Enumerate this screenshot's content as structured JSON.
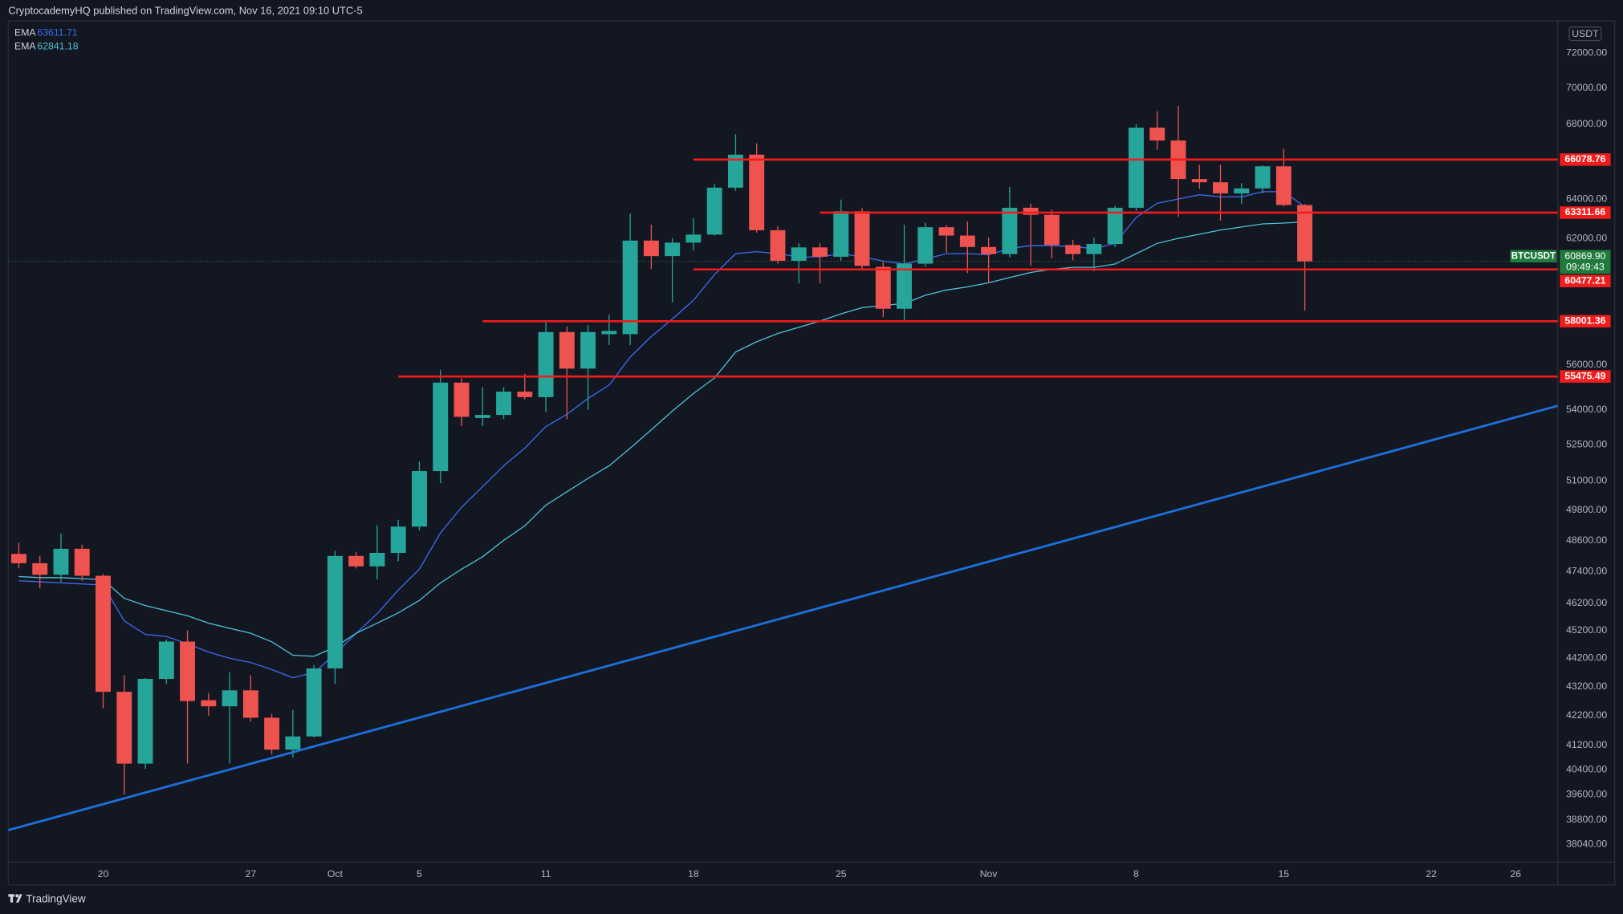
{
  "header": "CryptocademyHQ published on TradingView.com, Nov 16, 2021 09:10 UTC-5",
  "footer": "TradingView",
  "chart_data": {
    "type": "candlestick",
    "symbol": "BTCUSDT",
    "currency": "USDT",
    "countdown": "09:49:43",
    "last_price_label": "60869.90",
    "log_scale": true,
    "grid": false,
    "up_color": "#26a69a",
    "down_color": "#ef5350",
    "open": [
      48080,
      47720,
      47280,
      48280,
      47240,
      43020,
      40600,
      43470,
      44800,
      42730,
      42520,
      43070,
      42130,
      41060,
      41500,
      43840,
      48000,
      47600,
      48120,
      49150,
      51400,
      55200,
      53650,
      53780,
      54800,
      54560,
      57500,
      55830,
      57400,
      57400,
      61900,
      61130,
      61800,
      62200,
      64600,
      66340,
      62420,
      60900,
      61560,
      61100,
      63380,
      60600,
      58590,
      60760,
      62570,
      62150,
      61580,
      61230,
      63560,
      63200,
      61680,
      61230,
      61730,
      63560,
      67800,
      67100,
      65050,
      64880,
      64300,
      64560,
      65720,
      63700
    ],
    "high": [
      48520,
      48000,
      48880,
      48440,
      47300,
      43600,
      43500,
      44880,
      45200,
      42980,
      43700,
      43600,
      42260,
      42400,
      43960,
      48200,
      48160,
      49200,
      49420,
      51800,
      55780,
      55400,
      55000,
      55000,
      55600,
      58000,
      57760,
      57820,
      58300,
      63260,
      62700,
      62030,
      63030,
      64800,
      67440,
      66950,
      62620,
      61770,
      61770,
      63980,
      63560,
      60870,
      62700,
      62800,
      62680,
      62860,
      62050,
      64640,
      63770,
      63460,
      61940,
      62050,
      63670,
      68000,
      68700,
      69000,
      65800,
      65800,
      64840,
      65770,
      66650,
      63750
    ],
    "low": [
      47520,
      46770,
      47000,
      47040,
      42450,
      39600,
      40430,
      43300,
      40600,
      42200,
      40600,
      42000,
      40900,
      40800,
      41470,
      43300,
      47520,
      47100,
      47800,
      49000,
      50900,
      53300,
      53300,
      53600,
      54460,
      53900,
      53600,
      54000,
      56900,
      56900,
      60500,
      58900,
      61400,
      62150,
      64440,
      62300,
      60760,
      59800,
      59800,
      60900,
      60500,
      58200,
      58050,
      60600,
      61300,
      60300,
      59800,
      61070,
      60650,
      61020,
      60920,
      60400,
      61580,
      63400,
      66600,
      63100,
      64540,
      62900,
      63760,
      64300,
      63630,
      58500
    ],
    "close": [
      47720,
      47280,
      48280,
      47240,
      43020,
      40600,
      43470,
      44800,
      42700,
      42520,
      43070,
      42130,
      41060,
      41500,
      43840,
      48000,
      47600,
      48120,
      49150,
      51400,
      55200,
      53700,
      53780,
      54800,
      54560,
      57500,
      55830,
      57500,
      57550,
      61900,
      61130,
      61800,
      62200,
      64600,
      66340,
      62420,
      60900,
      61560,
      61100,
      63380,
      60650,
      58590,
      60760,
      62570,
      62150,
      61580,
      61230,
      63560,
      63200,
      61680,
      61230,
      61730,
      63560,
      67800,
      67100,
      65050,
      64880,
      64300,
      64560,
      65720,
      63700,
      60869.9
    ],
    "series": [
      {
        "name": "EMA",
        "color": "#3d6df2",
        "values": [
          47050,
          47010,
          46970,
          46930,
          46890,
          45550,
          45060,
          44980,
          44720,
          44420,
          44200,
          44050,
          43800,
          43510,
          43690,
          44350,
          45100,
          45820,
          46700,
          47490,
          48900,
          49920,
          50760,
          51620,
          52360,
          53280,
          53810,
          54500,
          55090,
          56350,
          57290,
          58110,
          58990,
          60230,
          61250,
          61350,
          61250,
          61090,
          61090,
          61250,
          61090,
          60890,
          60740,
          60990,
          61250,
          61250,
          61200,
          61500,
          61650,
          61650,
          61600,
          61500,
          61760,
          63060,
          63790,
          64010,
          64230,
          64120,
          64120,
          64390,
          64390,
          63611.71
        ]
      },
      {
        "name": "EMA",
        "color": "#4fc3d9",
        "values": [
          47210,
          47170,
          47170,
          47130,
          47090,
          46390,
          46120,
          45930,
          45740,
          45470,
          45280,
          45100,
          44790,
          44310,
          44270,
          44600,
          45100,
          45470,
          45850,
          46310,
          46970,
          47490,
          47970,
          48610,
          49180,
          50010,
          50550,
          51100,
          51620,
          52360,
          53140,
          53950,
          54720,
          55410,
          56580,
          57050,
          57430,
          57720,
          58010,
          58350,
          58640,
          58740,
          58840,
          59230,
          59480,
          59630,
          59830,
          60080,
          60330,
          60480,
          60580,
          60580,
          60740,
          61250,
          61760,
          62010,
          62220,
          62430,
          62580,
          62740,
          62780,
          62841.18
        ]
      }
    ],
    "levels": [
      {
        "value": 66078.76,
        "from": 32,
        "color": "#f21c1c"
      },
      {
        "value": 63311.66,
        "from": 38,
        "color": "#f21c1c"
      },
      {
        "value": 60477.21,
        "from": 32,
        "color": "#f21c1c"
      },
      {
        "value": 58001.36,
        "from": 22,
        "color": "#f21c1c"
      },
      {
        "value": 55475.49,
        "from": 18,
        "color": "#f21c1c"
      }
    ],
    "trendline": {
      "x": [
        -0.5,
        73
      ],
      "y": [
        38480,
        54180
      ],
      "color": "#1e6fd9"
    },
    "last_price_color": "#1f7a3c",
    "xlim": [
      -0.5,
      73
    ],
    "xticks": [
      {
        "value": 4,
        "label": "20"
      },
      {
        "value": 11,
        "label": "27"
      },
      {
        "value": 15,
        "label": "Oct"
      },
      {
        "value": 19,
        "label": "5"
      },
      {
        "value": 25,
        "label": "11"
      },
      {
        "value": 32,
        "label": "18"
      },
      {
        "value": 39,
        "label": "25"
      },
      {
        "value": 46,
        "label": "Nov"
      },
      {
        "value": 53,
        "label": "8"
      },
      {
        "value": 60,
        "label": "15"
      },
      {
        "value": 67,
        "label": "22"
      },
      {
        "value": 71,
        "label": "26"
      }
    ],
    "ylim": [
      37500,
      73900
    ],
    "yticks": [
      {
        "value": 72000,
        "label": "72000.00"
      },
      {
        "value": 70000,
        "label": "70000.00"
      },
      {
        "value": 68000,
        "label": "68000.00"
      },
      {
        "value": 64000,
        "label": "64000.00"
      },
      {
        "value": 62000,
        "label": "62000.00"
      },
      {
        "value": 56000,
        "label": "56000.00"
      },
      {
        "value": 54000,
        "label": "54000.00"
      },
      {
        "value": 52500,
        "label": "52500.00"
      },
      {
        "value": 51000,
        "label": "51000.00"
      },
      {
        "value": 49800,
        "label": "49800.00"
      },
      {
        "value": 48600,
        "label": "48600.00"
      },
      {
        "value": 47400,
        "label": "47400.00"
      },
      {
        "value": 46200,
        "label": "46200.00"
      },
      {
        "value": 45200,
        "label": "45200.00"
      },
      {
        "value": 44200,
        "label": "44200.00"
      },
      {
        "value": 43200,
        "label": "43200.00"
      },
      {
        "value": 42200,
        "label": "42200.00"
      },
      {
        "value": 41200,
        "label": "41200.00"
      },
      {
        "value": 40400,
        "label": "40400.00"
      },
      {
        "value": 39600,
        "label": "39600.00"
      },
      {
        "value": 38800,
        "label": "38800.00"
      },
      {
        "value": 38040,
        "label": "38040.00"
      }
    ]
  }
}
